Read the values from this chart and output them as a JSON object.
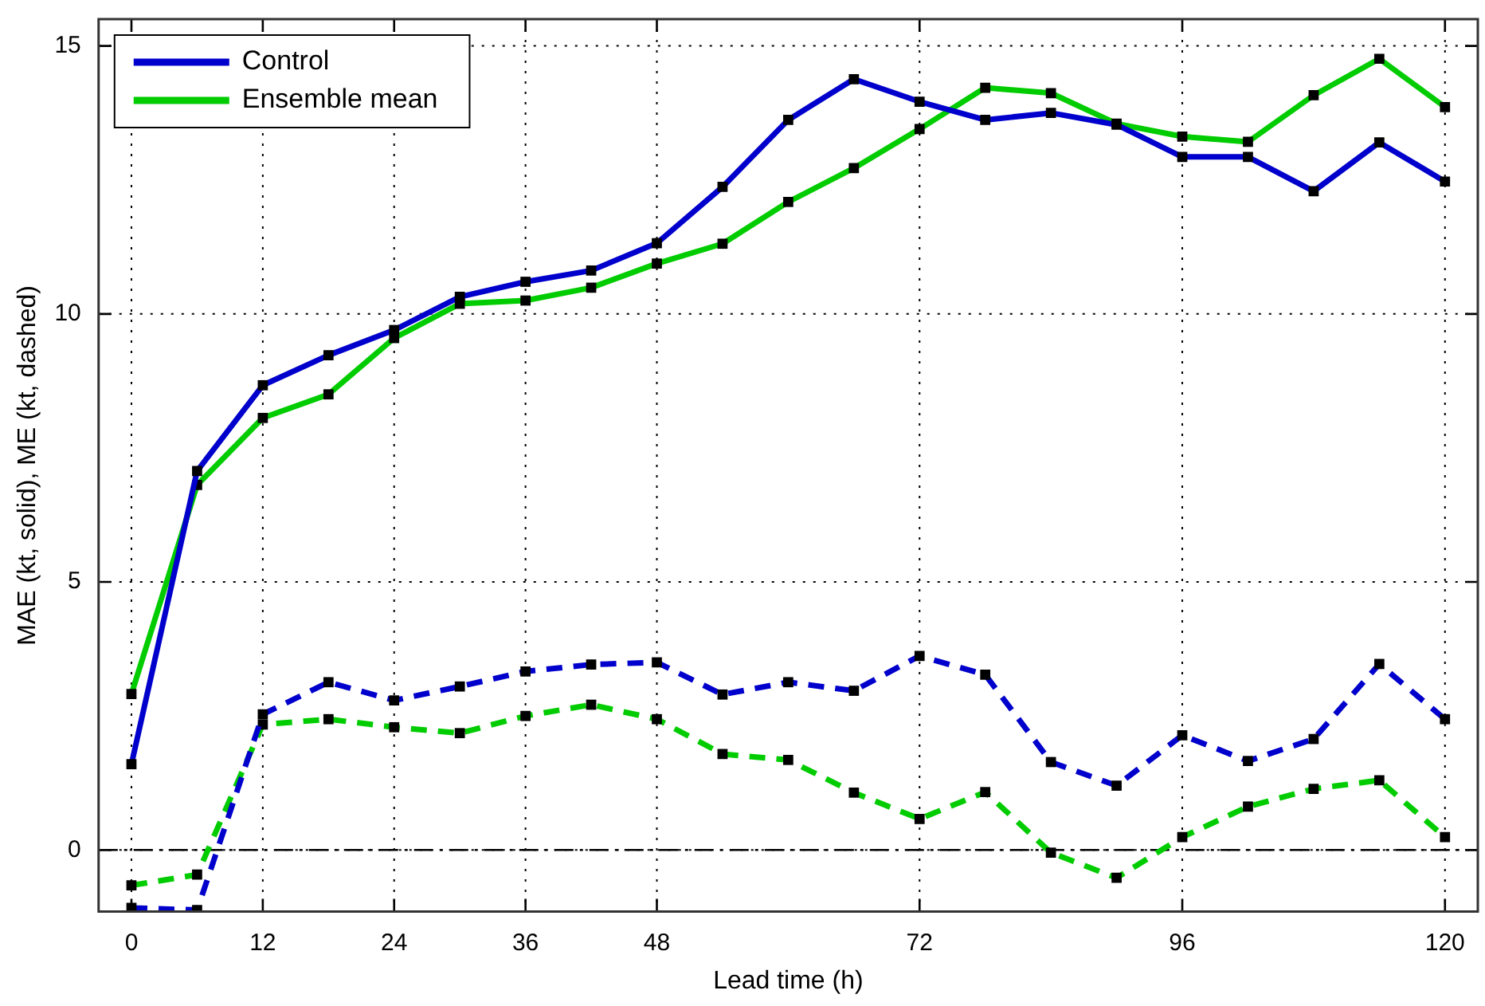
{
  "chart_data": {
    "type": "line",
    "xlabel": "Lead time (h)",
    "ylabel": "MAE (kt, solid), ME (kt, dashed)",
    "x": [
      0,
      6,
      12,
      18,
      24,
      30,
      36,
      42,
      48,
      54,
      60,
      66,
      72,
      78,
      84,
      90,
      96,
      102,
      108,
      114,
      120
    ],
    "series": [
      {
        "name": "Control",
        "color": "#0000cc",
        "line_style": "solid",
        "values": [
          1.6,
          7.07,
          8.67,
          9.23,
          9.7,
          10.32,
          10.6,
          10.81,
          11.32,
          12.37,
          13.62,
          14.38,
          13.96,
          13.62,
          13.75,
          13.53,
          12.93,
          12.93,
          12.29,
          13.2,
          12.47
        ]
      },
      {
        "name": "Ensemble mean",
        "color": "#00cc00",
        "line_style": "solid",
        "values": [
          2.91,
          6.81,
          8.06,
          8.5,
          9.55,
          10.19,
          10.25,
          10.49,
          10.94,
          11.31,
          12.09,
          12.72,
          13.45,
          14.22,
          14.12,
          13.55,
          13.31,
          13.21,
          14.08,
          14.76,
          13.86
        ]
      },
      {
        "color": "#0000cc",
        "line_style": "dashed",
        "values": [
          -1.08,
          -1.12,
          2.53,
          3.13,
          2.79,
          3.05,
          3.33,
          3.46,
          3.5,
          2.9,
          3.13,
          2.97,
          3.62,
          3.27,
          1.64,
          1.2,
          2.14,
          1.66,
          2.07,
          3.47,
          2.44
        ]
      },
      {
        "color": "#00cc00",
        "line_style": "dashed",
        "values": [
          -0.66,
          -0.46,
          2.34,
          2.44,
          2.29,
          2.18,
          2.5,
          2.71,
          2.44,
          1.79,
          1.68,
          1.07,
          0.58,
          1.08,
          -0.05,
          -0.52,
          0.24,
          0.81,
          1.14,
          1.3,
          0.24
        ]
      }
    ],
    "xlim": [
      -3,
      123
    ],
    "xticks": [
      0,
      12,
      24,
      36,
      48,
      72,
      96,
      120
    ],
    "ylim": [
      -1.15,
      15.5
    ],
    "yticks": [
      0,
      5,
      10,
      15
    ],
    "ref_lines": [
      {
        "axis": "y",
        "value": 0,
        "color": "#000000"
      }
    ],
    "grid": true,
    "legend": "top left",
    "marker": "square"
  }
}
